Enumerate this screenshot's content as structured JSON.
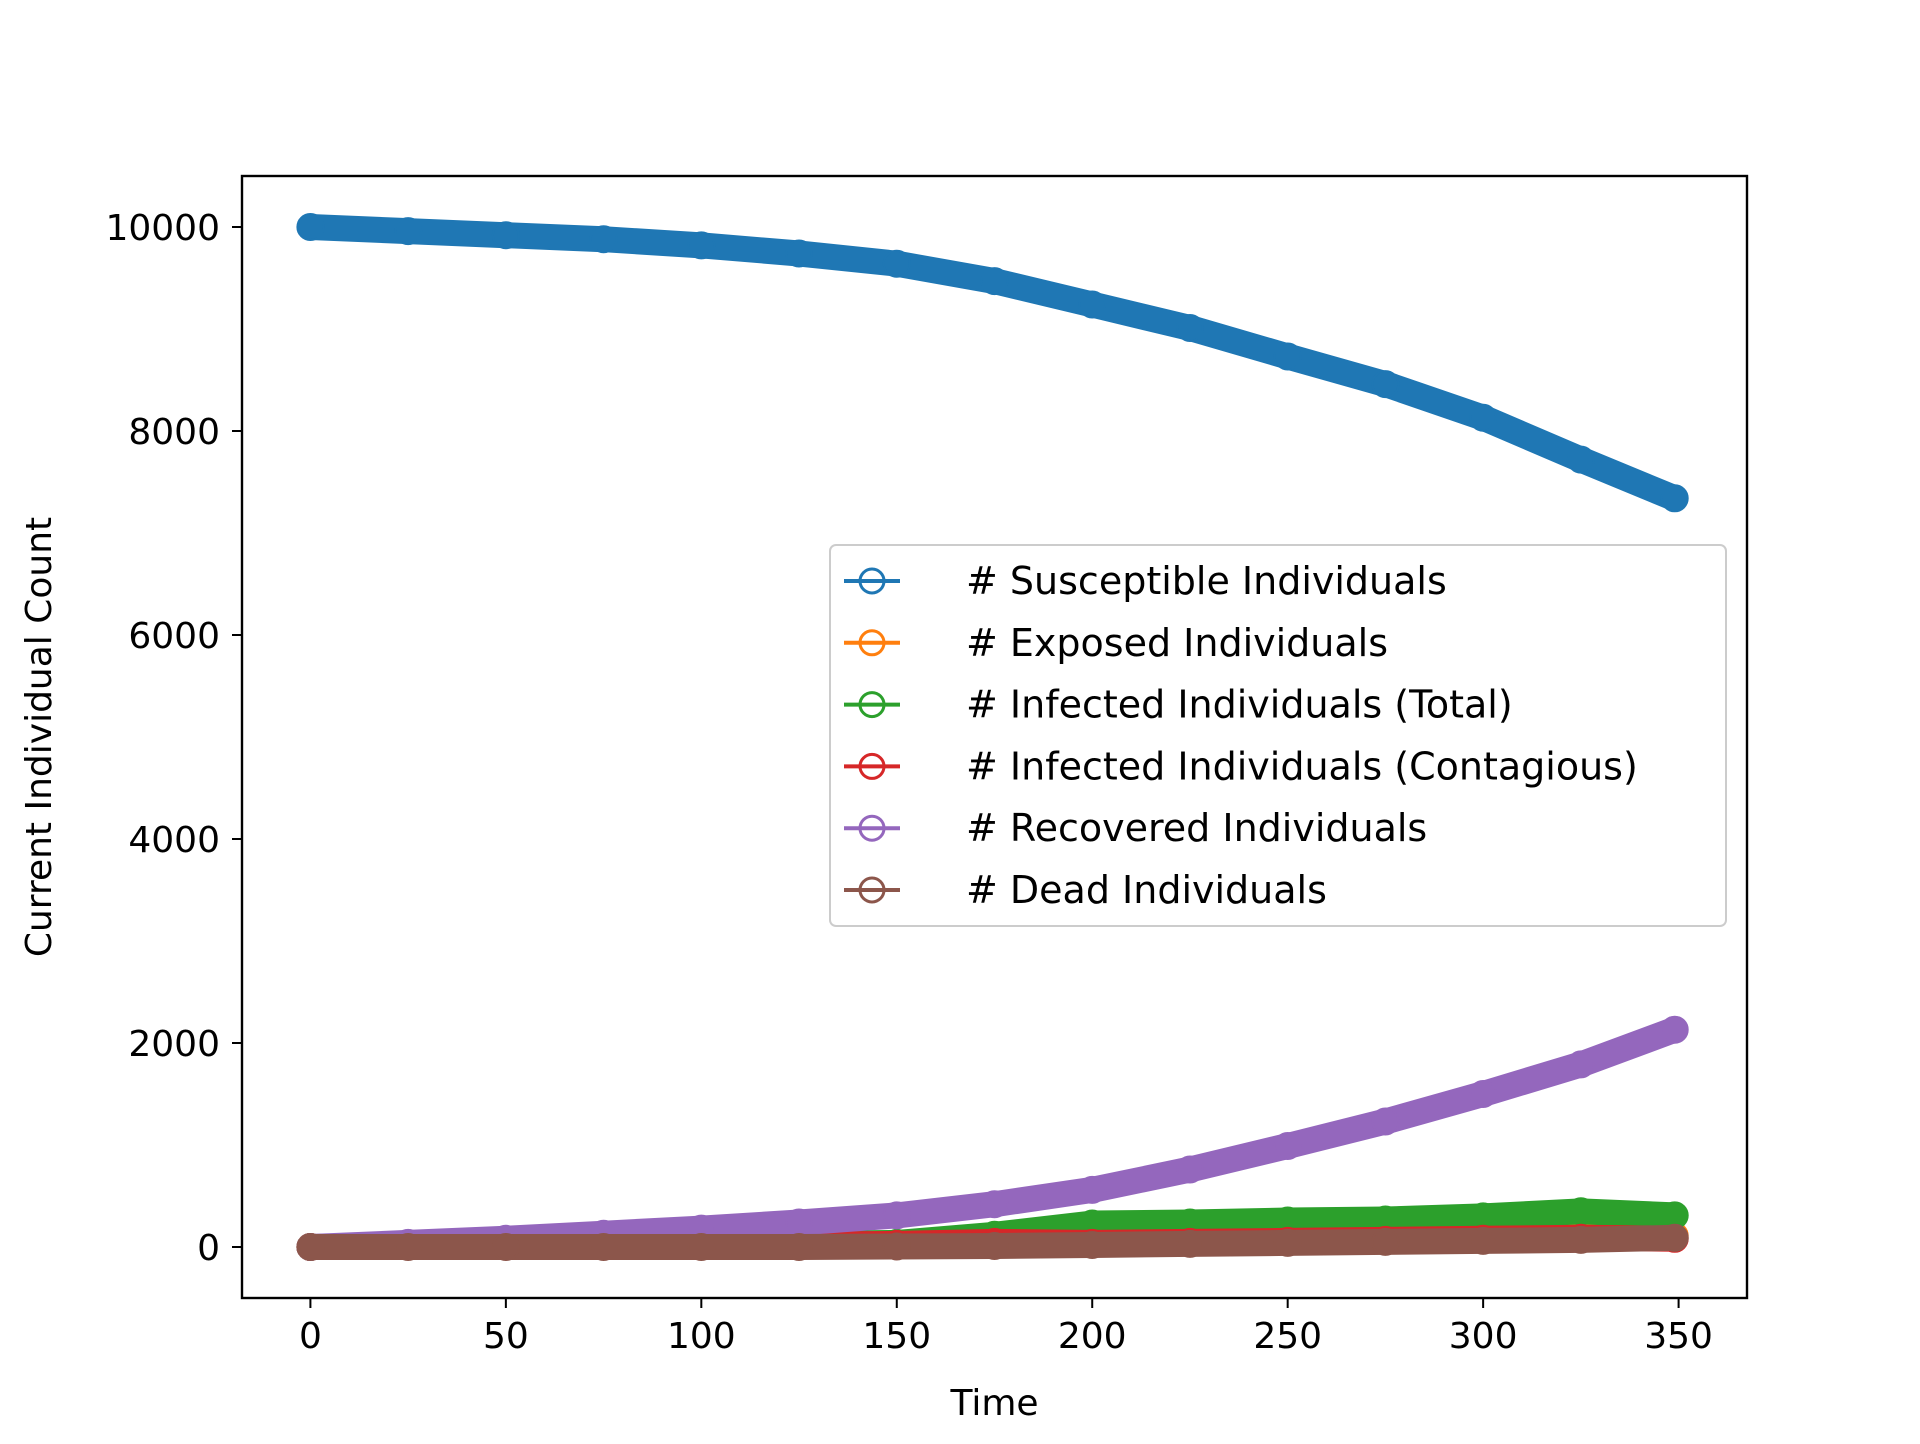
{
  "chart_data": {
    "type": "line",
    "title": "",
    "xlabel": "Time",
    "ylabel": "Current Individual Count",
    "xlim": [
      -17.5,
      367.5
    ],
    "ylim": [
      -500,
      10500
    ],
    "x_ticks": [
      0,
      50,
      100,
      150,
      200,
      250,
      300,
      350
    ],
    "x_tick_labels": [
      "0",
      "50",
      "100",
      "150",
      "200",
      "250",
      "300",
      "350"
    ],
    "y_ticks": [
      0,
      2000,
      4000,
      6000,
      8000,
      10000
    ],
    "y_tick_labels": [
      "0",
      "2000",
      "4000",
      "6000",
      "8000",
      "10000"
    ],
    "grid": false,
    "legend_position": "center-right",
    "marker": "circle",
    "x": [
      0,
      25,
      50,
      75,
      100,
      125,
      150,
      175,
      200,
      225,
      250,
      275,
      300,
      325,
      349
    ],
    "series": [
      {
        "name": "# Susceptible Individuals",
        "color": "#1f77b4",
        "values": [
          10000,
          9960,
          9920,
          9880,
          9820,
          9740,
          9640,
          9470,
          9240,
          9010,
          8730,
          8460,
          8130,
          7720,
          7340
        ]
      },
      {
        "name": "# Exposed Individuals",
        "color": "#ff7f0e",
        "values": [
          0,
          5,
          10,
          15,
          20,
          25,
          30,
          45,
          60,
          75,
          90,
          100,
          110,
          120,
          110
        ]
      },
      {
        "name": "# Infected Individuals (Total)",
        "color": "#2ca02c",
        "values": [
          0,
          10,
          15,
          20,
          25,
          30,
          40,
          120,
          230,
          240,
          260,
          270,
          300,
          350,
          310
        ]
      },
      {
        "name": "# Infected Individuals (Contagious)",
        "color": "#d62728",
        "values": [
          0,
          10,
          15,
          20,
          20,
          25,
          30,
          50,
          40,
          50,
          60,
          70,
          80,
          90,
          80
        ]
      },
      {
        "name": "# Recovered Individuals",
        "color": "#9467bd",
        "values": [
          0,
          40,
          80,
          130,
          180,
          240,
          310,
          420,
          560,
          760,
          990,
          1230,
          1500,
          1790,
          2130
        ]
      },
      {
        "name": "# Dead Individuals",
        "color": "#8c564b",
        "values": [
          0,
          0,
          0,
          0,
          0,
          0,
          5,
          10,
          20,
          30,
          40,
          50,
          60,
          70,
          90
        ]
      }
    ]
  }
}
